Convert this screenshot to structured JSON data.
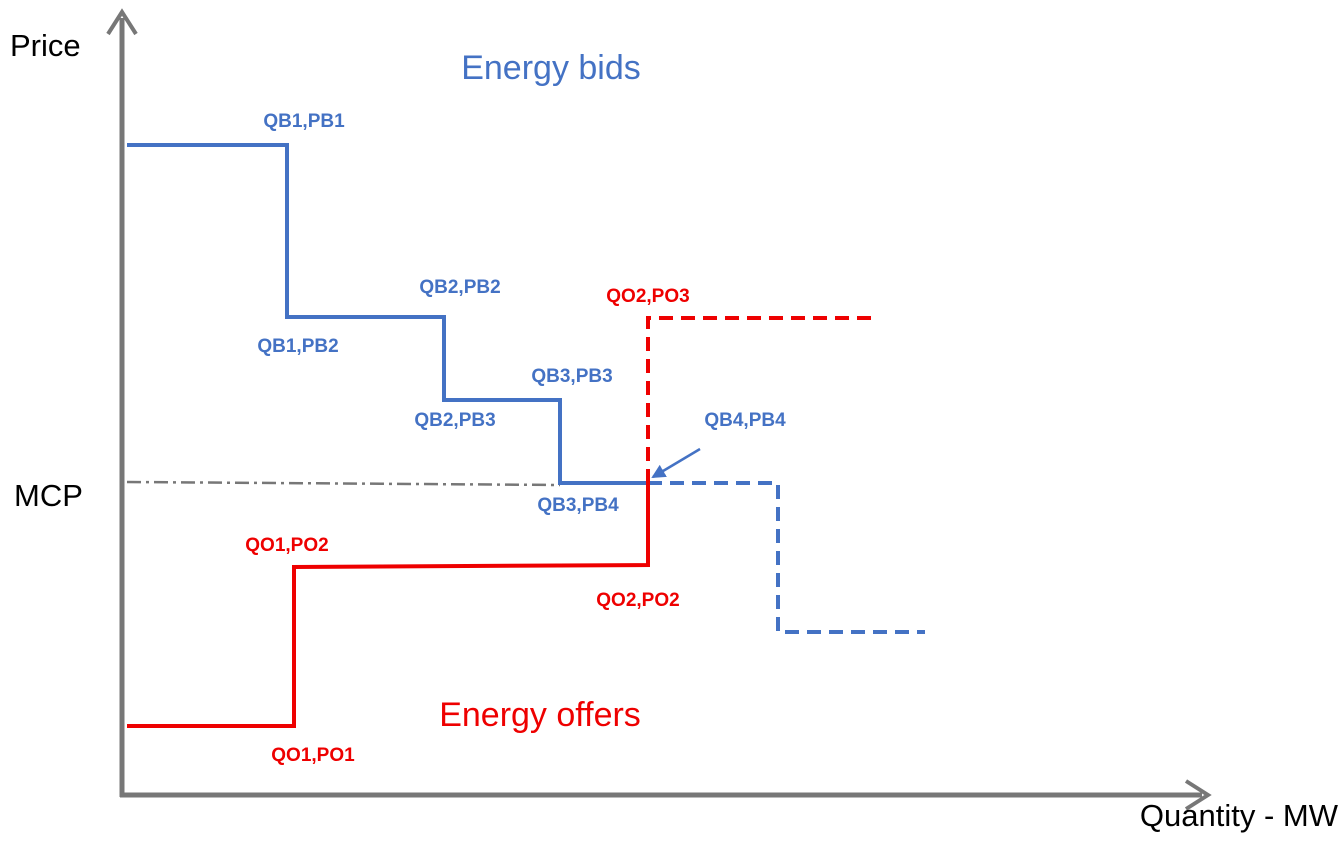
{
  "axes": {
    "y_label": "Price",
    "x_label": "Quantity - MW",
    "mcp_label": "MCP"
  },
  "curves": {
    "bids_label": "Energy bids",
    "offers_label": "Energy offers"
  },
  "bid_points": [
    "QB1,PB1",
    "QB1,PB2",
    "QB2,PB2",
    "QB2,PB3",
    "QB3,PB3",
    "QB3,PB4",
    "QB4,PB4"
  ],
  "offer_points": [
    "QO2,PO3",
    "QO1,PO2",
    "QO2,PO2",
    "QO1,PO1"
  ]
}
